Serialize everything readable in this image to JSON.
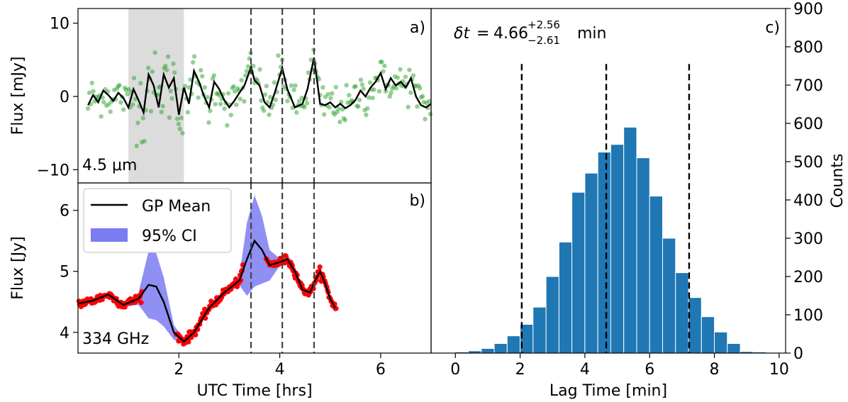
{
  "chart_data": [
    {
      "id": "a",
      "type": "scatter",
      "panel_label": "a)",
      "annotation": "4.5 μm",
      "ylabel": "Flux [mJy]",
      "xlim": [
        0,
        7
      ],
      "ylim": [
        -11.8,
        12.0
      ],
      "yticks": [
        -10,
        0,
        10
      ],
      "ytick_labels": [
        "−10",
        "0",
        "10"
      ],
      "shaded_span_x": [
        1.0,
        2.1
      ],
      "vlines_x": [
        3.43,
        4.05,
        4.68
      ],
      "model_name": "4.5um model",
      "model_x": [
        0.2,
        0.3,
        0.4,
        0.5,
        0.6,
        0.7,
        0.8,
        0.9,
        1.0,
        1.1,
        1.2,
        1.3,
        1.4,
        1.5,
        1.6,
        1.7,
        1.8,
        1.9,
        2.0,
        2.1,
        2.2,
        2.3,
        2.4,
        2.5,
        2.6,
        2.7,
        2.8,
        2.9,
        3.0,
        3.1,
        3.2,
        3.3,
        3.43,
        3.5,
        3.6,
        3.7,
        3.8,
        3.9,
        4.05,
        4.15,
        4.3,
        4.45,
        4.55,
        4.68,
        4.8,
        4.9,
        5.0,
        5.1,
        5.2,
        5.3,
        5.4,
        5.5,
        5.6,
        5.7,
        5.8,
        5.9,
        6.0,
        6.1,
        6.2,
        6.3,
        6.4,
        6.5,
        6.6,
        6.7,
        6.8,
        6.9,
        7.0
      ],
      "model_y": [
        -1.2,
        0.2,
        -0.8,
        0.8,
        0.2,
        -0.6,
        0.5,
        -0.2,
        -1.5,
        1.0,
        -0.5,
        -2.2,
        3.0,
        1.5,
        -1.5,
        3.0,
        1.2,
        2.5,
        -2.5,
        1.2,
        -1.0,
        3.5,
        2.0,
        0.0,
        -1.5,
        2.0,
        1.0,
        -0.5,
        -1.5,
        -0.6,
        0.5,
        1.5,
        4.0,
        2.2,
        1.5,
        -0.8,
        -1.5,
        0.5,
        3.9,
        1.0,
        -1.5,
        -1.0,
        1.0,
        5.3,
        -1.0,
        -1.2,
        -0.8,
        -1.5,
        -1.0,
        -1.6,
        -1.2,
        -0.5,
        0.8,
        0.0,
        1.2,
        2.0,
        3.2,
        1.0,
        2.5,
        1.5,
        2.0,
        1.2,
        2.5,
        0.0,
        -1.2,
        -1.5,
        -1.0
      ],
      "scatter_note": "noisy green observations around the model, scatter ~1.6 mJy (larger inside shaded span)"
    },
    {
      "id": "b",
      "type": "line",
      "panel_label": "b)",
      "annotation": "334 GHz",
      "xlabel": "UTC Time [hrs]",
      "ylabel": "Flux [Jy]",
      "xlim": [
        0,
        7
      ],
      "ylim": [
        3.66,
        6.45
      ],
      "xticks": [
        2,
        4,
        6
      ],
      "xtick_labels": [
        "2",
        "4",
        "6"
      ],
      "yticks": [
        4,
        5,
        6
      ],
      "ytick_labels": [
        "4",
        "5",
        "6"
      ],
      "vlines_x": [
        3.43,
        4.05,
        4.68
      ],
      "legend": {
        "position": "top-left",
        "entries": [
          "GP Mean",
          "95% CI"
        ]
      },
      "gp_mean_x": [
        0.0,
        0.3,
        0.6,
        0.9,
        1.2,
        1.4,
        1.55,
        1.7,
        1.9,
        2.1,
        2.3,
        2.6,
        2.9,
        3.2,
        3.35,
        3.5,
        3.65,
        3.8,
        4.0,
        4.15,
        4.3,
        4.45,
        4.6,
        4.7,
        4.8,
        4.9,
        5.0,
        5.1
      ],
      "gp_mean_y": [
        4.47,
        4.52,
        4.62,
        4.45,
        4.55,
        4.78,
        4.75,
        4.5,
        4.0,
        3.85,
        4.0,
        4.4,
        4.65,
        4.85,
        5.2,
        5.5,
        5.35,
        5.1,
        5.15,
        5.2,
        5.0,
        4.7,
        4.65,
        4.85,
        5.0,
        4.8,
        4.55,
        4.4
      ],
      "ci_halfwidth": [
        0.03,
        0.03,
        0.03,
        0.03,
        0.1,
        0.55,
        0.55,
        0.4,
        0.12,
        0.04,
        0.04,
        0.04,
        0.04,
        0.08,
        0.6,
        0.75,
        0.55,
        0.25,
        0.06,
        0.08,
        0.08,
        0.04,
        0.04,
        0.04,
        0.04,
        0.04,
        0.05,
        0.08
      ],
      "scatter_note": "red observations along the GP mean (data gaps near 1.4 h and 3.5 h)"
    },
    {
      "id": "c",
      "type": "bar",
      "panel_label": "c)",
      "title": "δt = 4.66 +2.56 −2.61 min",
      "title_parts": {
        "lhs": "δt",
        "value": "4.66",
        "upper": "+2.56",
        "lower": "−2.61",
        "unit": "min"
      },
      "xlabel": "Lag Time [min]",
      "ylabel": "Counts",
      "ylabel_side": "right",
      "xlim": [
        -0.75,
        10.2
      ],
      "ylim": [
        0,
        900
      ],
      "xticks": [
        0,
        2,
        4,
        6,
        8,
        10
      ],
      "xtick_labels": [
        "0",
        "2",
        "4",
        "6",
        "8",
        "10"
      ],
      "yticks": [
        0,
        100,
        200,
        300,
        400,
        500,
        600,
        700,
        800,
        900
      ],
      "ytick_labels": [
        "0",
        "100",
        "200",
        "300",
        "400",
        "500",
        "600",
        "700",
        "800",
        "900"
      ],
      "bin_edges": [
        0.0,
        0.4,
        0.8,
        1.2,
        1.6,
        2.0,
        2.4,
        2.8,
        3.2,
        3.6,
        4.0,
        4.4,
        4.8,
        5.2,
        5.6,
        6.0,
        6.4,
        6.8,
        7.2,
        7.6,
        8.0,
        8.4,
        8.8,
        9.2,
        9.6
      ],
      "counts": [
        3,
        6,
        12,
        25,
        45,
        75,
        120,
        200,
        290,
        420,
        470,
        525,
        545,
        590,
        510,
        410,
        300,
        210,
        145,
        95,
        55,
        25,
        4,
        3
      ],
      "vlines_x": [
        2.05,
        4.66,
        7.22
      ]
    }
  ]
}
